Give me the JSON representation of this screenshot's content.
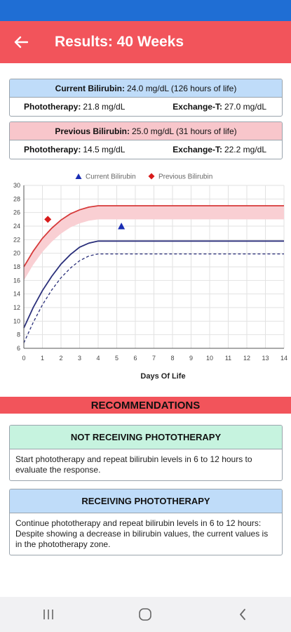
{
  "header": {
    "title": "Results: 40 Weeks",
    "back_icon": "arrow-left-icon"
  },
  "current": {
    "label": "Current Bilirubin:",
    "value": "24.0 mg/dL (126 hours of life)",
    "phototherapy_label": "Phototherapy:",
    "phototherapy_value": "21.8 mg/dL",
    "exchange_label": "Exchange-T:",
    "exchange_value": "27.0 mg/dL",
    "color": "#bfdcf9"
  },
  "previous": {
    "label": "Previous Bilirubin:",
    "value": "25.0 mg/dL (31 hours of life)",
    "phototherapy_label": "Phototherapy:",
    "phototherapy_value": "14.5 mg/dL",
    "exchange_label": "Exchange-T:",
    "exchange_value": "22.2 mg/dL",
    "color": "#f8c6cb"
  },
  "chart_data": {
    "type": "line",
    "xlabel": "Days Of Life",
    "ylabel": "",
    "xlim": [
      0,
      14
    ],
    "ylim": [
      6,
      30
    ],
    "x_ticks": [
      "0",
      "1",
      "2",
      "3",
      "4",
      "5",
      "6",
      "7",
      "8",
      "9",
      "10",
      "11",
      "12",
      "13",
      "14"
    ],
    "y_ticks": [
      "6",
      "8",
      "10",
      "12",
      "14",
      "16",
      "18",
      "20",
      "22",
      "24",
      "26",
      "28",
      "30"
    ],
    "grid": true,
    "legend": "top-center",
    "legend_items": [
      {
        "name": "Current Bilirubin",
        "marker": "triangle",
        "color": "#1a2db3"
      },
      {
        "name": "Previous Bilirubin",
        "marker": "diamond",
        "color": "#d81b1b"
      }
    ],
    "points": [
      {
        "name": "Current Bilirubin",
        "x": 5.25,
        "y": 24.0,
        "marker": "triangle",
        "color": "#1a2db3"
      },
      {
        "name": "Previous Bilirubin",
        "x": 1.29,
        "y": 25.0,
        "marker": "diamond",
        "color": "#d81b1b"
      }
    ],
    "lines": [
      {
        "id": "exchange",
        "color": "#d63a3a",
        "style": "solid",
        "x": [
          0,
          0.5,
          1,
          1.5,
          2,
          2.5,
          3,
          3.5,
          4,
          14
        ],
        "y": [
          18.0,
          20.3,
          22.2,
          23.7,
          24.9,
          25.8,
          26.4,
          26.8,
          27.0,
          27.0
        ]
      },
      {
        "id": "phototherapy",
        "color": "#2a2f7a",
        "style": "solid",
        "x": [
          0,
          0.5,
          1,
          1.5,
          2,
          2.5,
          3,
          3.5,
          4,
          14
        ],
        "y": [
          9.0,
          12.0,
          14.5,
          16.6,
          18.4,
          19.8,
          20.9,
          21.5,
          21.8,
          21.8
        ]
      },
      {
        "id": "phototherapy-lower",
        "color": "#2a2f7a",
        "style": "dashed",
        "x": [
          0,
          0.5,
          1,
          1.5,
          2,
          2.5,
          3,
          3.5,
          4,
          14
        ],
        "y": [
          6.8,
          9.8,
          12.4,
          14.6,
          16.4,
          17.8,
          18.9,
          19.6,
          19.9,
          19.9
        ]
      }
    ],
    "band": {
      "color": "#f9cfd3",
      "x": [
        0,
        0.5,
        1,
        1.5,
        2,
        2.5,
        3,
        3.5,
        4,
        14
      ],
      "y_upper": [
        18.0,
        20.3,
        22.2,
        23.7,
        24.9,
        25.8,
        26.4,
        26.8,
        27.0,
        27.0
      ],
      "y_lower": [
        16.0,
        18.3,
        20.2,
        21.7,
        22.9,
        23.8,
        24.4,
        24.8,
        25.0,
        25.0
      ]
    }
  },
  "recommendations": {
    "title": "RECOMMENDATIONS",
    "not_receiving": {
      "heading": "NOT RECEIVING PHOTOTHERAPY",
      "text": "Start phototherapy and repeat bilirubin levels in 6 to 12 hours to evaluate the response.",
      "color": "#c6f3df"
    },
    "receiving": {
      "heading": "RECEIVING PHOTOTHERAPY",
      "text": "Continue phototherapy and repeat bilirubin levels in 6 to 12 hours:  Despite showing a decrease in bilirubin values, the current values is in the phototherapy zone.",
      "color": "#bfdcf9"
    }
  },
  "nav": {
    "recent_icon": "recent-apps-icon",
    "home_icon": "home-icon",
    "back_icon": "nav-back-icon"
  },
  "colors": {
    "status_bar": "#1f6ed4",
    "app_bar": "#f2545b",
    "accent_red": "#f2545b"
  }
}
